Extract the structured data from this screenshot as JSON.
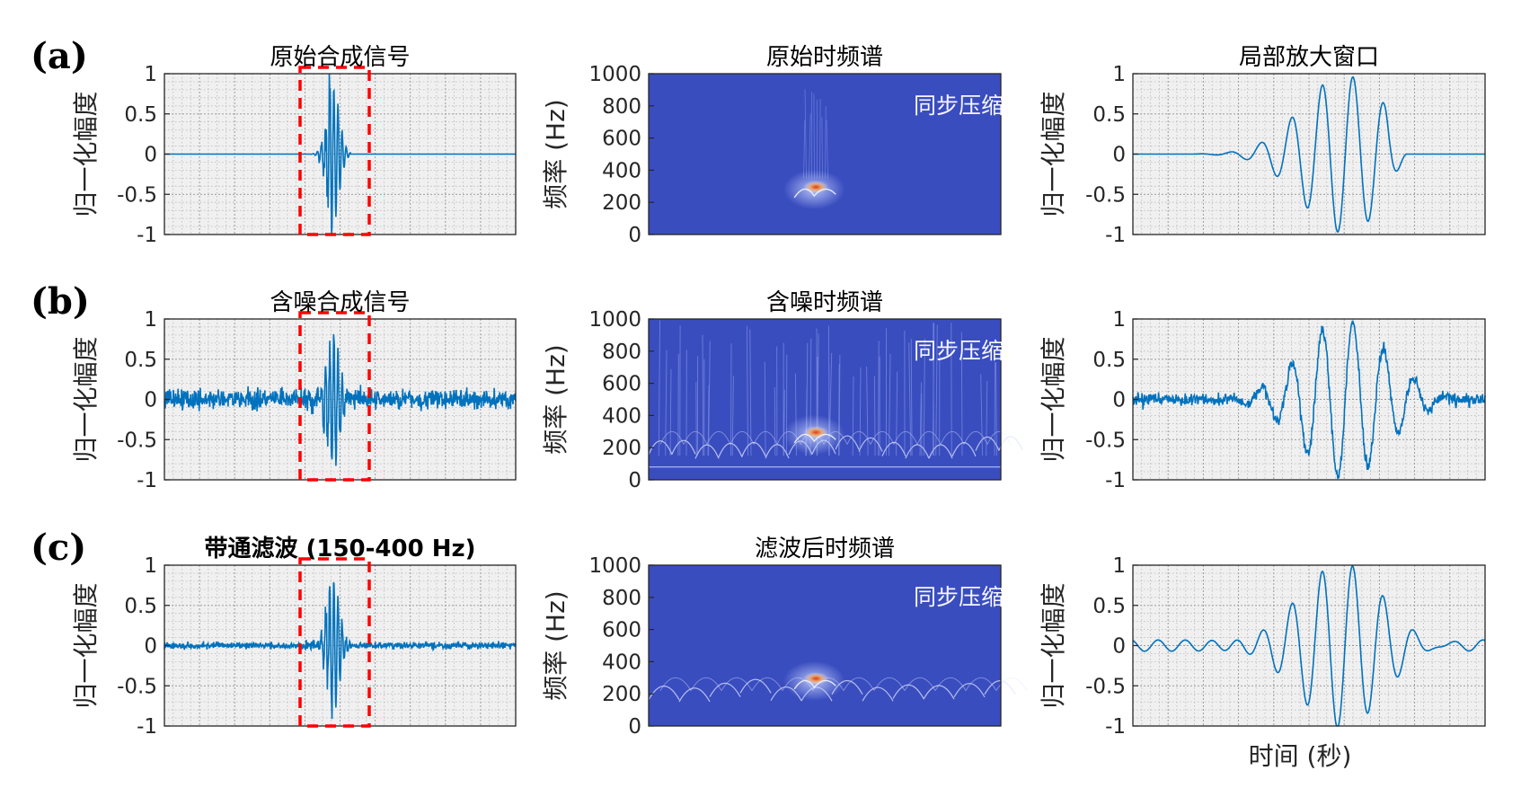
{
  "colors": {
    "signal": "#0072bd",
    "highlight": "#ff0000",
    "plot_bg": "#f0f0f0",
    "grid": "#9a9a9a",
    "spectrum_bg": "#3a4dbf",
    "spectrum_ridge": "#dfe6ff",
    "spectrum_peak": "#d83a1c",
    "watermark": "#ffffff"
  },
  "rows": [
    {
      "letter": "(a)",
      "signal": {
        "title": "原始合成信号",
        "ylabel": "归一化幅度",
        "yticks": [
          "1",
          "0.5",
          "0",
          "-0.5",
          "-1"
        ],
        "ylim": [
          -1,
          1
        ]
      },
      "spectrum": {
        "title": "原始时频谱",
        "ylabel": "频率 (Hz)",
        "yticks": [
          "1000",
          "800",
          "600",
          "400",
          "200",
          "0"
        ],
        "ylim": [
          0,
          1000
        ],
        "watermark": "同步压缩小波变换"
      },
      "zoom": {
        "title": "局部放大窗口",
        "ylabel": "归一化幅度",
        "yticks": [
          "1",
          "0.5",
          "0",
          "-0.5",
          "-1"
        ],
        "ylim": [
          -1,
          1
        ]
      }
    },
    {
      "letter": "(b)",
      "signal": {
        "title": "含噪合成信号",
        "ylabel": "归一化幅度",
        "yticks": [
          "1",
          "0.5",
          "0",
          "-0.5",
          "-1"
        ],
        "ylim": [
          -1,
          1
        ]
      },
      "spectrum": {
        "title": "含噪时频谱",
        "ylabel": "频率 (Hz)",
        "yticks": [
          "1000",
          "800",
          "600",
          "400",
          "200",
          "0"
        ],
        "ylim": [
          0,
          1000
        ],
        "watermark": "同步压缩小波变换"
      },
      "zoom": {
        "title": "",
        "ylabel": "归一化幅度",
        "yticks": [
          "1",
          "0.5",
          "0",
          "-0.5",
          "-1"
        ],
        "ylim": [
          -1,
          1
        ]
      }
    },
    {
      "letter": "(c)",
      "signal": {
        "title": "带通滤波 (150-400 Hz)",
        "ylabel": "归一化幅度",
        "yticks": [
          "1",
          "0.5",
          "0",
          "-0.5",
          "-1"
        ],
        "ylim": [
          -1,
          1
        ]
      },
      "spectrum": {
        "title": "滤波后时频谱",
        "ylabel": "频率 (Hz)",
        "yticks": [
          "1000",
          "800",
          "600",
          "400",
          "200",
          "0"
        ],
        "ylim": [
          0,
          1000
        ],
        "watermark": "同步压缩小波变换"
      },
      "zoom": {
        "title": "",
        "ylabel": "归一化幅度",
        "yticks": [
          "1",
          "0.5",
          "0",
          "-0.5",
          "-1"
        ],
        "ylim": [
          -1,
          1
        ],
        "xlabel": "时间 (秒)"
      }
    }
  ],
  "chart_data": [
    {
      "type": "line",
      "title": "原始合成信号",
      "ylabel": "归一化幅度",
      "ylim": [
        -1,
        1
      ],
      "grid": true,
      "series": [
        {
          "description": "zero baseline with a short burst near the center; peak amplitude 1.0, minimum -1.0"
        }
      ],
      "highlight_window": "dashed red rectangle around the burst"
    },
    {
      "type": "heatmap",
      "title": "原始时频谱",
      "ylabel": "频率 (Hz)",
      "ylim": [
        0,
        1000
      ],
      "peak_frequency_range_hz": [
        240,
        320
      ]
    },
    {
      "type": "line",
      "title": "局部放大窗口",
      "ylabel": "归一化幅度",
      "ylim": [
        -1,
        1
      ],
      "grid": true
    },
    {
      "type": "line",
      "title": "含噪合成信号",
      "ylabel": "归一化幅度",
      "ylim": [
        -1,
        1
      ],
      "grid": true
    },
    {
      "type": "heatmap",
      "title": "含噪时频谱",
      "ylabel": "频率 (Hz)",
      "ylim": [
        0,
        1000
      ]
    },
    {
      "type": "line",
      "title": "",
      "ylabel": "归一化幅度",
      "ylim": [
        -1,
        1
      ],
      "grid": true
    },
    {
      "type": "line",
      "title": "带通滤波 (150-400 Hz)",
      "ylabel": "归一化幅度",
      "ylim": [
        -1,
        1
      ],
      "grid": true
    },
    {
      "type": "heatmap",
      "title": "滤波后时频谱",
      "ylabel": "频率 (Hz)",
      "ylim": [
        0,
        1000
      ]
    },
    {
      "type": "line",
      "title": "",
      "ylabel": "归一化幅度",
      "xlabel": "时间 (秒)",
      "ylim": [
        -1,
        1
      ],
      "grid": true
    }
  ]
}
